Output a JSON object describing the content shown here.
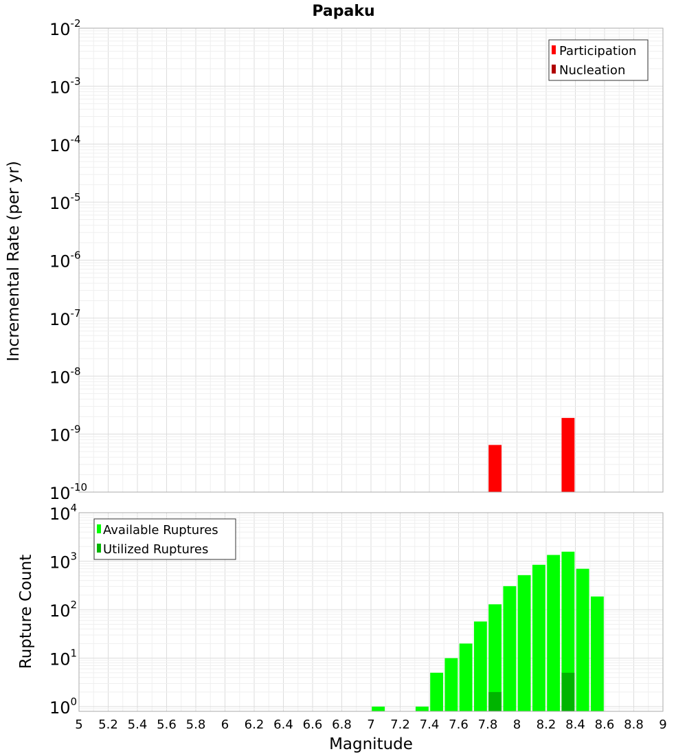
{
  "chart_data": [
    {
      "type": "bar",
      "title": "Papaku",
      "ylabel": "Incremental Rate (per yr)",
      "xlabel": "",
      "xlim": [
        5,
        9
      ],
      "ylim": [
        1e-10,
        0.01
      ],
      "yscale": "log",
      "bar_width": 0.1,
      "grid": true,
      "legend_position": "top-right",
      "y_ticks": [
        {
          "base": "10",
          "exp": "-10",
          "value": 1e-10
        },
        {
          "base": "10",
          "exp": "-9",
          "value": 1e-09
        },
        {
          "base": "10",
          "exp": "-8",
          "value": 1e-08
        },
        {
          "base": "10",
          "exp": "-7",
          "value": 1e-07
        },
        {
          "base": "10",
          "exp": "-6",
          "value": 1e-06
        },
        {
          "base": "10",
          "exp": "-5",
          "value": 1e-05
        },
        {
          "base": "10",
          "exp": "-4",
          "value": 0.0001
        },
        {
          "base": "10",
          "exp": "-3",
          "value": 0.001
        },
        {
          "base": "10",
          "exp": "-2",
          "value": 0.01
        }
      ],
      "series": [
        {
          "name": "Participation",
          "color": "#ff0000",
          "x": [
            7.85,
            8.35
          ],
          "values": [
            6.5e-10,
            1.9e-09
          ]
        },
        {
          "name": "Nucleation",
          "color": "#b00000",
          "x": [],
          "values": []
        }
      ]
    },
    {
      "type": "bar",
      "title": "",
      "ylabel": "Rupture Count",
      "xlabel": "Magnitude",
      "xlim": [
        5,
        9
      ],
      "ylim": [
        0.8,
        10000
      ],
      "yscale": "log",
      "bar_width": 0.1,
      "grid": true,
      "legend_position": "top-left",
      "x_ticks": [
        "5",
        "5.2",
        "5.4",
        "5.6",
        "5.8",
        "6",
        "6.2",
        "6.4",
        "6.6",
        "6.8",
        "7",
        "7.2",
        "7.4",
        "7.6",
        "7.8",
        "8",
        "8.2",
        "8.4",
        "8.6",
        "8.8",
        "9"
      ],
      "y_ticks": [
        {
          "base": "10",
          "exp": "0",
          "value": 1
        },
        {
          "base": "10",
          "exp": "1",
          "value": 10
        },
        {
          "base": "10",
          "exp": "2",
          "value": 100
        },
        {
          "base": "10",
          "exp": "3",
          "value": 1000
        },
        {
          "base": "10",
          "exp": "4",
          "value": 10000
        }
      ],
      "series": [
        {
          "name": "Available Ruptures",
          "color": "#00ff00",
          "x": [
            7.05,
            7.35,
            7.45,
            7.55,
            7.65,
            7.75,
            7.85,
            7.95,
            8.05,
            8.15,
            8.25,
            8.35,
            8.45,
            8.55
          ],
          "values": [
            1,
            1,
            5,
            10,
            20,
            57,
            129,
            306,
            516,
            843,
            1345,
            1570,
            697,
            187
          ]
        },
        {
          "name": "Utilized Ruptures",
          "color": "#00b400",
          "x": [
            7.85,
            8.35
          ],
          "values": [
            2,
            5
          ]
        }
      ]
    }
  ]
}
